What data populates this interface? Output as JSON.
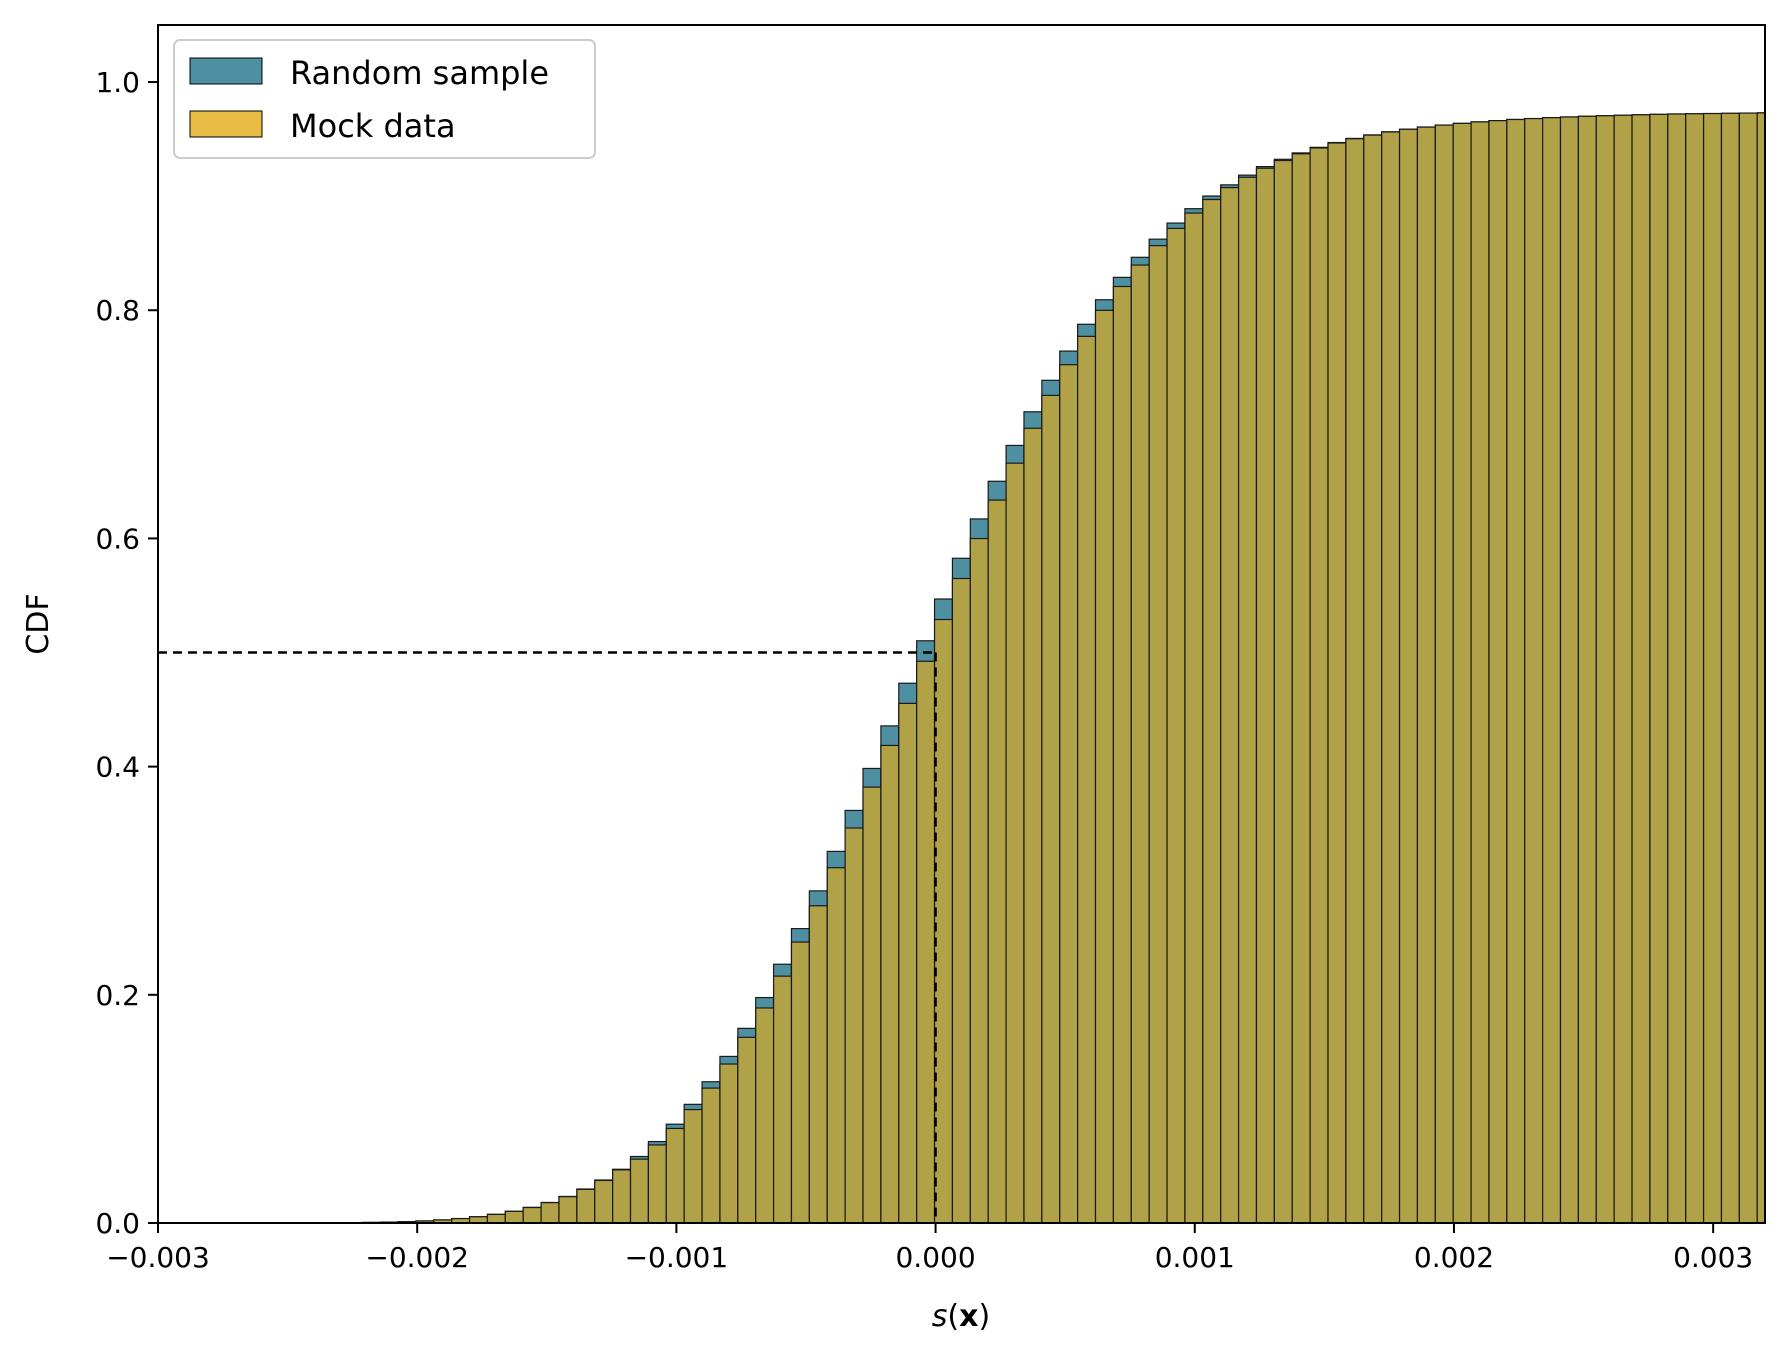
{
  "chart_data": {
    "type": "bar",
    "subtype": "cumulative-histogram",
    "xlabel_italic": "s",
    "xlabel_bold": "x",
    "ylabel": "CDF",
    "xlim": [
      -0.003,
      0.0032
    ],
    "ylim": [
      0.0,
      1.05
    ],
    "xticks": [
      -0.003,
      -0.002,
      -0.001,
      0.0,
      0.001,
      0.002,
      0.003
    ],
    "xtick_labels": [
      "−0.003",
      "−0.002",
      "−0.001",
      "0.000",
      "0.001",
      "0.002",
      "0.003"
    ],
    "yticks": [
      0.0,
      0.2,
      0.4,
      0.6,
      0.8,
      1.0
    ],
    "ytick_labels": [
      "0.0",
      "0.2",
      "0.4",
      "0.6",
      "0.8",
      "1.0"
    ],
    "bin_start": -0.00235,
    "bin_width": 6.9e-05,
    "legend_position": "upper-left",
    "series": [
      {
        "name": "Random sample",
        "color": "#4e8fa1",
        "values": [
          0.0002,
          0.0003,
          0.0005,
          0.0008,
          0.0012,
          0.0018,
          0.0027,
          0.0039,
          0.0055,
          0.0076,
          0.0103,
          0.0137,
          0.018,
          0.0233,
          0.0298,
          0.0377,
          0.0471,
          0.0583,
          0.0714,
          0.0866,
          0.104,
          0.1238,
          0.146,
          0.1706,
          0.1976,
          0.2268,
          0.258,
          0.2911,
          0.3257,
          0.3616,
          0.3984,
          0.4357,
          0.4731,
          0.5103,
          0.5469,
          0.5826,
          0.6171,
          0.6501,
          0.6815,
          0.711,
          0.7386,
          0.7642,
          0.7877,
          0.8092,
          0.8288,
          0.8464,
          0.8623,
          0.8764,
          0.889,
          0.9001,
          0.9099,
          0.9184,
          0.9259,
          0.9323,
          0.9379,
          0.9428,
          0.947,
          0.9506,
          0.9537,
          0.9564,
          0.9587,
          0.9606,
          0.9623,
          0.9638,
          0.9651,
          0.9662,
          0.9672,
          0.968,
          0.9688,
          0.9694,
          0.97,
          0.9705,
          0.9709,
          0.9713,
          0.9717,
          0.972,
          0.9722,
          0.9724,
          0.9726,
          0.9728,
          0.973,
          0.9731,
          0.9732,
          0.9733,
          0.9734,
          0.9735,
          0.9736,
          0.9736,
          0.9737,
          0.9737,
          0.9738
        ]
      },
      {
        "name": "Mock data",
        "color": "#e8bb44",
        "values": []
      }
    ]
  },
  "reference_lines": {
    "y_median": 0.5,
    "x_median": 0.0
  }
}
